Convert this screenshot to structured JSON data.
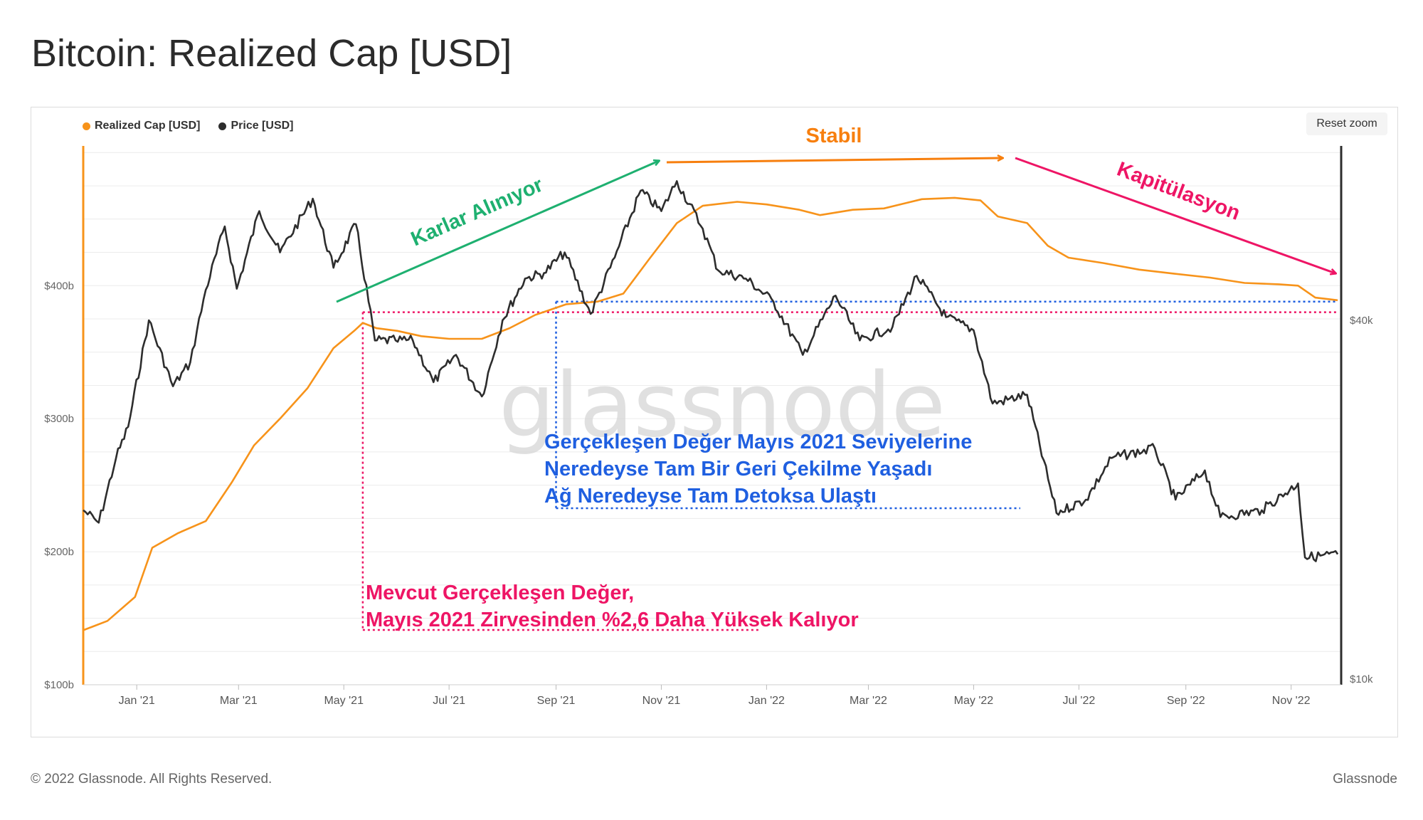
{
  "header": {
    "title": "Bitcoin: Realized Cap [USD]"
  },
  "toolbar": {
    "reset_zoom_label": "Reset zoom"
  },
  "legend": [
    {
      "label": "Realized Cap [USD]",
      "color": "#f7931a"
    },
    {
      "label": "Price [USD]",
      "color": "#2d2d2d"
    }
  ],
  "footer": {
    "copyright": "© 2022 Glassnode. All Rights Reserved.",
    "brand": "Glassnode"
  },
  "watermark": "glassnode",
  "chart_data": {
    "type": "line",
    "title": "Bitcoin: Realized Cap [USD]",
    "x_ticks": [
      "Jan '21",
      "Mar '21",
      "May '21",
      "Jul '21",
      "Sep '21",
      "Nov '21",
      "Jan '22",
      "Mar '22",
      "May '22",
      "Jul '22",
      "Sep '22",
      "Nov '22"
    ],
    "x_range": [
      "2020-12-01",
      "2022-11-30"
    ],
    "y_left": {
      "scale": "linear",
      "ticks": [
        100,
        200,
        300,
        400
      ],
      "tick_labels": [
        "$100b",
        "$200b",
        "$300b",
        "$400b"
      ],
      "range": [
        100,
        505
      ]
    },
    "y_right": {
      "scale": "log",
      "ticks": [
        10000,
        40000
      ],
      "tick_labels": [
        "$10k",
        "$40k"
      ]
    },
    "grid": true,
    "legend_position": "top-left",
    "series": [
      {
        "name": "Realized Cap [USD]",
        "color": "#f7931a",
        "axis": "left",
        "unit": "billion USD",
        "points": [
          [
            "2020-12-01",
            141
          ],
          [
            "2020-12-15",
            148
          ],
          [
            "2020-12-31",
            166
          ],
          [
            "2021-01-10",
            203
          ],
          [
            "2021-01-25",
            214
          ],
          [
            "2021-02-10",
            223
          ],
          [
            "2021-02-25",
            252
          ],
          [
            "2021-03-10",
            280
          ],
          [
            "2021-03-25",
            300
          ],
          [
            "2021-04-10",
            323
          ],
          [
            "2021-04-25",
            353
          ],
          [
            "2021-05-07",
            366
          ],
          [
            "2021-05-12",
            372
          ],
          [
            "2021-05-20",
            368
          ],
          [
            "2021-06-01",
            366
          ],
          [
            "2021-06-15",
            362
          ],
          [
            "2021-07-01",
            360
          ],
          [
            "2021-07-20",
            360
          ],
          [
            "2021-08-05",
            368
          ],
          [
            "2021-08-20",
            378
          ],
          [
            "2021-09-07",
            386
          ],
          [
            "2021-09-25",
            388
          ],
          [
            "2021-10-10",
            394
          ],
          [
            "2021-10-25",
            420
          ],
          [
            "2021-11-10",
            447
          ],
          [
            "2021-11-25",
            460
          ],
          [
            "2021-12-15",
            463
          ],
          [
            "2022-01-01",
            461
          ],
          [
            "2022-01-20",
            457
          ],
          [
            "2022-02-01",
            453
          ],
          [
            "2022-02-20",
            457
          ],
          [
            "2022-03-10",
            458
          ],
          [
            "2022-04-01",
            465
          ],
          [
            "2022-04-20",
            466
          ],
          [
            "2022-05-05",
            464
          ],
          [
            "2022-05-15",
            452
          ],
          [
            "2022-06-01",
            447
          ],
          [
            "2022-06-13",
            430
          ],
          [
            "2022-06-25",
            421
          ],
          [
            "2022-07-15",
            417
          ],
          [
            "2022-08-05",
            412
          ],
          [
            "2022-08-25",
            409
          ],
          [
            "2022-09-15",
            406
          ],
          [
            "2022-10-05",
            402
          ],
          [
            "2022-10-25",
            401
          ],
          [
            "2022-11-05",
            400
          ],
          [
            "2022-11-15",
            391
          ],
          [
            "2022-11-28",
            389
          ]
        ]
      },
      {
        "name": "Price [USD]",
        "color": "#2d2d2d",
        "axis": "right",
        "unit": "USD",
        "points": [
          [
            "2020-12-01",
            19200
          ],
          [
            "2020-12-10",
            18300
          ],
          [
            "2020-12-20",
            23500
          ],
          [
            "2020-12-27",
            26500
          ],
          [
            "2021-01-08",
            40000
          ],
          [
            "2021-01-22",
            31000
          ],
          [
            "2021-02-01",
            34000
          ],
          [
            "2021-02-10",
            45000
          ],
          [
            "2021-02-21",
            57500
          ],
          [
            "2021-02-28",
            45200
          ],
          [
            "2021-03-13",
            61000
          ],
          [
            "2021-03-25",
            52000
          ],
          [
            "2021-04-13",
            64000
          ],
          [
            "2021-04-25",
            49000
          ],
          [
            "2021-05-08",
            58000
          ],
          [
            "2021-05-19",
            37000
          ],
          [
            "2021-05-31",
            37000
          ],
          [
            "2021-06-10",
            37000
          ],
          [
            "2021-06-22",
            31500
          ],
          [
            "2021-07-05",
            35000
          ],
          [
            "2021-07-20",
            29800
          ],
          [
            "2021-08-01",
            40000
          ],
          [
            "2021-08-14",
            47000
          ],
          [
            "2021-08-25",
            48000
          ],
          [
            "2021-09-06",
            52000
          ],
          [
            "2021-09-21",
            41000
          ],
          [
            "2021-10-05",
            51000
          ],
          [
            "2021-10-20",
            66000
          ],
          [
            "2021-11-01",
            61000
          ],
          [
            "2021-11-10",
            68500
          ],
          [
            "2021-11-25",
            57000
          ],
          [
            "2021-12-04",
            48500
          ],
          [
            "2021-12-20",
            47000
          ],
          [
            "2022-01-05",
            43000
          ],
          [
            "2022-01-22",
            35000
          ],
          [
            "2022-02-10",
            44000
          ],
          [
            "2022-02-24",
            37000
          ],
          [
            "2022-03-15",
            39000
          ],
          [
            "2022-03-29",
            47500
          ],
          [
            "2022-04-15",
            40500
          ],
          [
            "2022-05-01",
            38500
          ],
          [
            "2022-05-12",
            29000
          ],
          [
            "2022-06-01",
            30000
          ],
          [
            "2022-06-18",
            19000
          ],
          [
            "2022-07-05",
            20000
          ],
          [
            "2022-07-20",
            23500
          ],
          [
            "2022-08-14",
            24400
          ],
          [
            "2022-08-26",
            20000
          ],
          [
            "2022-09-12",
            22400
          ],
          [
            "2022-09-21",
            18700
          ],
          [
            "2022-10-15",
            19200
          ],
          [
            "2022-11-05",
            21300
          ],
          [
            "2022-11-09",
            16000
          ],
          [
            "2022-11-28",
            16200
          ]
        ]
      }
    ],
    "reference_lines": [
      {
        "type": "horizontal",
        "axis": "left",
        "value": 380,
        "from": "2021-05-12",
        "color": "#ee1565"
      },
      {
        "type": "horizontal",
        "axis": "left",
        "value": 388,
        "from": "2021-09-01",
        "color": "#1f5fe0"
      }
    ],
    "annotations": [
      {
        "text": "Karlar Alınıyor",
        "color": "#1eb070"
      },
      {
        "text": "Stabil",
        "color": "#f77f0e"
      },
      {
        "text": "Kapitülasyon",
        "color": "#ee1565"
      },
      {
        "lines": [
          "Gerçekleşen Değer Mayıs 2021 Seviyelerine",
          "Neredeyse Tam Bir Geri Çekilme Yaşadı",
          "Ağ Neredeyse Tam Detoksa Ulaştı"
        ],
        "color": "#1f5fe0"
      },
      {
        "lines": [
          "Mevcut Gerçekleşen Değer,",
          "Mayıs 2021 Zirvesinden %2,6 Daha Yüksek Kalıyor"
        ],
        "color": "#ee1565"
      }
    ]
  }
}
